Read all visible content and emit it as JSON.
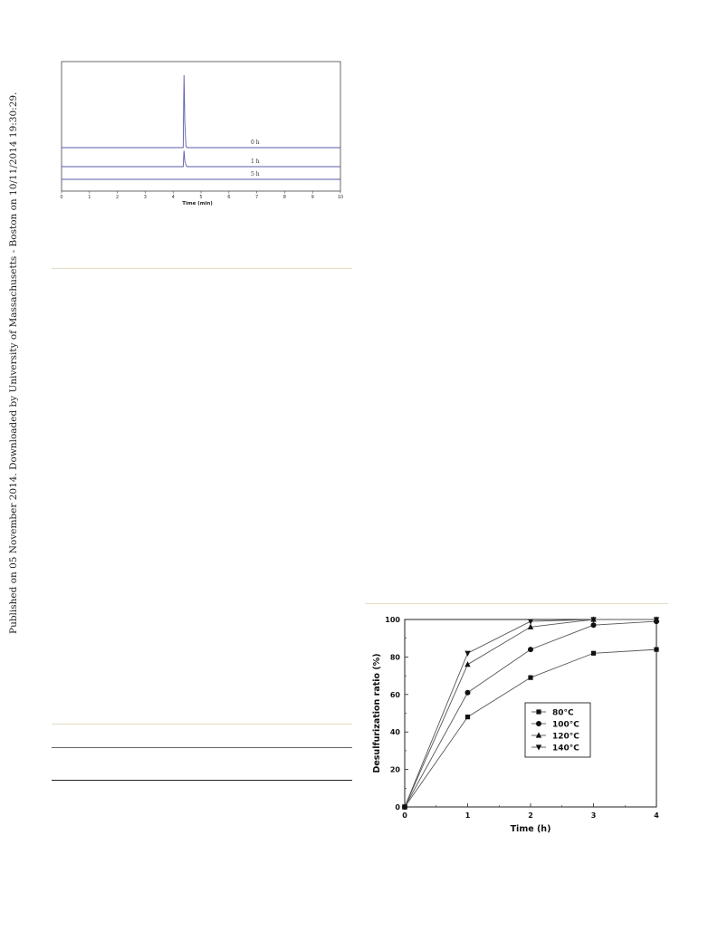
{
  "side_note": "Published on 05 November 2014. Downloaded by University of Massachusetts - Boston on 10/11/2014 19:30:29.",
  "colors": {
    "chromatogram": "#5a5aa8",
    "rule": "#e3ddc2",
    "axis": "#333333"
  },
  "chart_data": [
    {
      "type": "line",
      "title": "",
      "xlabel": "Time (min)",
      "ylabel": "",
      "xlim": [
        0,
        10
      ],
      "x_ticks": [
        "0",
        "1",
        "2",
        "3",
        "4",
        "5",
        "6",
        "7",
        "8",
        "9",
        "10"
      ],
      "peak_time": 4.4,
      "series": [
        {
          "name": "0 h",
          "peak_height": 1.0
        },
        {
          "name": "1 h",
          "peak_height": 0.22
        },
        {
          "name": "5 h",
          "peak_height": 0.0
        }
      ]
    },
    {
      "type": "line",
      "title": "",
      "xlabel": "Time (h)",
      "ylabel": "Desulfurization ratio (%)",
      "xlim": [
        0,
        4
      ],
      "ylim": [
        0,
        100
      ],
      "x_ticks": [
        "0",
        "1",
        "2",
        "3",
        "4"
      ],
      "y_ticks": [
        "0",
        "20",
        "40",
        "60",
        "80",
        "100"
      ],
      "legend_position": "center-right",
      "categories": [
        0,
        1,
        2,
        3,
        4
      ],
      "series": [
        {
          "name": "80°C",
          "marker": "square",
          "values": [
            0,
            48,
            69,
            82,
            84
          ]
        },
        {
          "name": "100°C",
          "marker": "circle",
          "values": [
            0,
            61,
            84,
            97,
            99
          ]
        },
        {
          "name": "120°C",
          "marker": "triangle-up",
          "values": [
            0,
            76,
            96,
            100,
            100
          ]
        },
        {
          "name": "140°C",
          "marker": "triangle-down",
          "values": [
            0,
            82,
            99,
            100,
            100
          ]
        }
      ]
    }
  ]
}
